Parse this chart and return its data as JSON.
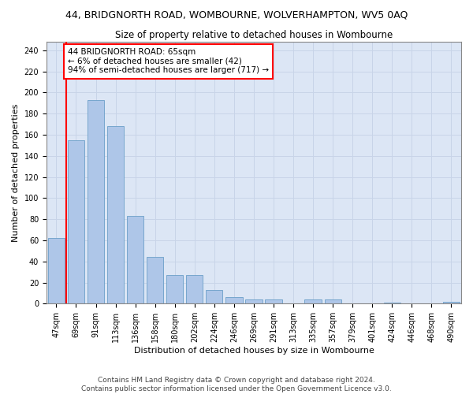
{
  "title1": "44, BRIDGNORTH ROAD, WOMBOURNE, WOLVERHAMPTON, WV5 0AQ",
  "title2": "Size of property relative to detached houses in Wombourne",
  "xlabel": "Distribution of detached houses by size in Wombourne",
  "ylabel": "Number of detached properties",
  "categories": [
    "47sqm",
    "69sqm",
    "91sqm",
    "113sqm",
    "136sqm",
    "158sqm",
    "180sqm",
    "202sqm",
    "224sqm",
    "246sqm",
    "269sqm",
    "291sqm",
    "313sqm",
    "335sqm",
    "357sqm",
    "379sqm",
    "401sqm",
    "424sqm",
    "446sqm",
    "468sqm",
    "490sqm"
  ],
  "values": [
    62,
    155,
    193,
    168,
    83,
    44,
    27,
    27,
    13,
    6,
    4,
    4,
    0,
    4,
    4,
    0,
    0,
    1,
    0,
    0,
    2
  ],
  "bar_color": "#aec6e8",
  "bar_edge_color": "#6b9fc8",
  "grid_color": "#c8d4e8",
  "background_color": "#dce6f5",
  "annotation_box_text": "44 BRIDGNORTH ROAD: 65sqm\n← 6% of detached houses are smaller (42)\n94% of semi-detached houses are larger (717) →",
  "annotation_box_color": "white",
  "annotation_box_edge_color": "red",
  "vline_color": "red",
  "ylim_max": 248,
  "yticks": [
    0,
    20,
    40,
    60,
    80,
    100,
    120,
    140,
    160,
    180,
    200,
    220,
    240
  ],
  "footer1": "Contains HM Land Registry data © Crown copyright and database right 2024.",
  "footer2": "Contains public sector information licensed under the Open Government Licence v3.0.",
  "title1_fontsize": 9,
  "title2_fontsize": 8.5,
  "xlabel_fontsize": 8,
  "ylabel_fontsize": 8,
  "tick_fontsize": 7,
  "annot_fontsize": 7.5,
  "footer_fontsize": 6.5
}
